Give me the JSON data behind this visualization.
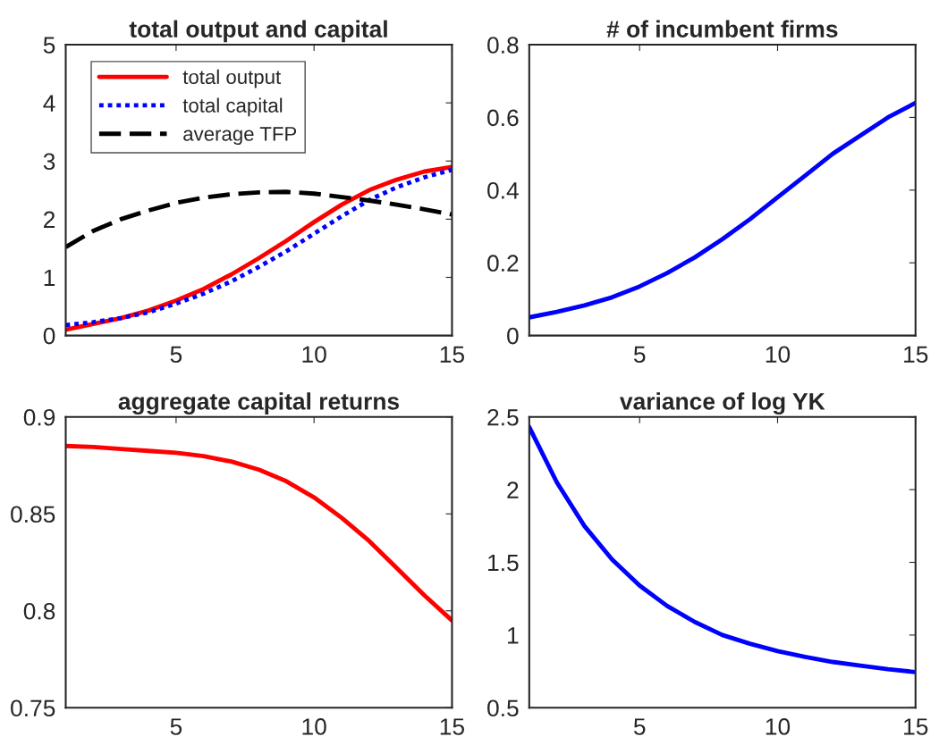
{
  "chart_data": [
    {
      "type": "line",
      "title": "total output and capital",
      "x": [
        1,
        2,
        3,
        4,
        5,
        6,
        7,
        8,
        9,
        10,
        11,
        12,
        13,
        14,
        15
      ],
      "xlim": [
        1,
        15
      ],
      "xticks": [
        5,
        10,
        15
      ],
      "ylim": [
        0,
        5
      ],
      "yticks": [
        0,
        1,
        2,
        3,
        4,
        5
      ],
      "legend": "top left",
      "grid": false,
      "series": [
        {
          "name": "total output",
          "color": "#ff0000",
          "line_style": "solid",
          "values": [
            0.1,
            0.2,
            0.3,
            0.43,
            0.6,
            0.8,
            1.05,
            1.33,
            1.63,
            1.95,
            2.25,
            2.5,
            2.68,
            2.82,
            2.9
          ]
        },
        {
          "name": "total capital",
          "color": "#0000ff",
          "line_style": "dotted",
          "values": [
            0.18,
            0.23,
            0.3,
            0.4,
            0.55,
            0.72,
            0.93,
            1.18,
            1.45,
            1.75,
            2.05,
            2.33,
            2.55,
            2.72,
            2.85
          ]
        },
        {
          "name": "average TFP",
          "color": "#000000",
          "line_style": "dashed",
          "values": [
            1.52,
            1.8,
            2.0,
            2.15,
            2.28,
            2.37,
            2.43,
            2.46,
            2.47,
            2.44,
            2.38,
            2.32,
            2.25,
            2.17,
            2.08
          ]
        }
      ]
    },
    {
      "type": "line",
      "title": "# of incumbent firms",
      "x": [
        1,
        2,
        3,
        4,
        5,
        6,
        7,
        8,
        9,
        10,
        11,
        12,
        13,
        14,
        15
      ],
      "xlim": [
        1,
        15
      ],
      "xticks": [
        5,
        10,
        15
      ],
      "ylim": [
        0,
        0.8
      ],
      "yticks": [
        0,
        0.2,
        0.4,
        0.6,
        0.8
      ],
      "grid": false,
      "series": [
        {
          "color": "#0000ff",
          "line_style": "solid",
          "values": [
            0.05,
            0.065,
            0.083,
            0.105,
            0.135,
            0.172,
            0.215,
            0.265,
            0.32,
            0.38,
            0.44,
            0.5,
            0.55,
            0.6,
            0.64
          ]
        }
      ]
    },
    {
      "type": "line",
      "title": "aggregate capital returns",
      "x": [
        1,
        2,
        3,
        4,
        5,
        6,
        7,
        8,
        9,
        10,
        11,
        12,
        13,
        14,
        15
      ],
      "xlim": [
        1,
        15
      ],
      "xticks": [
        5,
        10,
        15
      ],
      "ylim": [
        0.75,
        0.9
      ],
      "yticks": [
        0.75,
        0.8,
        0.85,
        0.9
      ],
      "grid": false,
      "series": [
        {
          "color": "#ff0000",
          "line_style": "solid",
          "values": [
            0.885,
            0.8845,
            0.8835,
            0.8825,
            0.8815,
            0.8798,
            0.877,
            0.8728,
            0.8668,
            0.8585,
            0.848,
            0.836,
            0.822,
            0.808,
            0.795
          ]
        }
      ]
    },
    {
      "type": "line",
      "title": "variance of log YK",
      "x": [
        1,
        2,
        3,
        4,
        5,
        6,
        7,
        8,
        9,
        10,
        11,
        12,
        13,
        14,
        15
      ],
      "xlim": [
        1,
        15
      ],
      "xticks": [
        5,
        10,
        15
      ],
      "ylim": [
        0.5,
        2.5
      ],
      "yticks": [
        0.5,
        1,
        1.5,
        2,
        2.5
      ],
      "grid": false,
      "series": [
        {
          "color": "#0000ff",
          "line_style": "solid",
          "values": [
            2.43,
            2.05,
            1.75,
            1.52,
            1.34,
            1.2,
            1.09,
            1.0,
            0.94,
            0.89,
            0.85,
            0.815,
            0.79,
            0.765,
            0.745
          ]
        }
      ]
    }
  ]
}
